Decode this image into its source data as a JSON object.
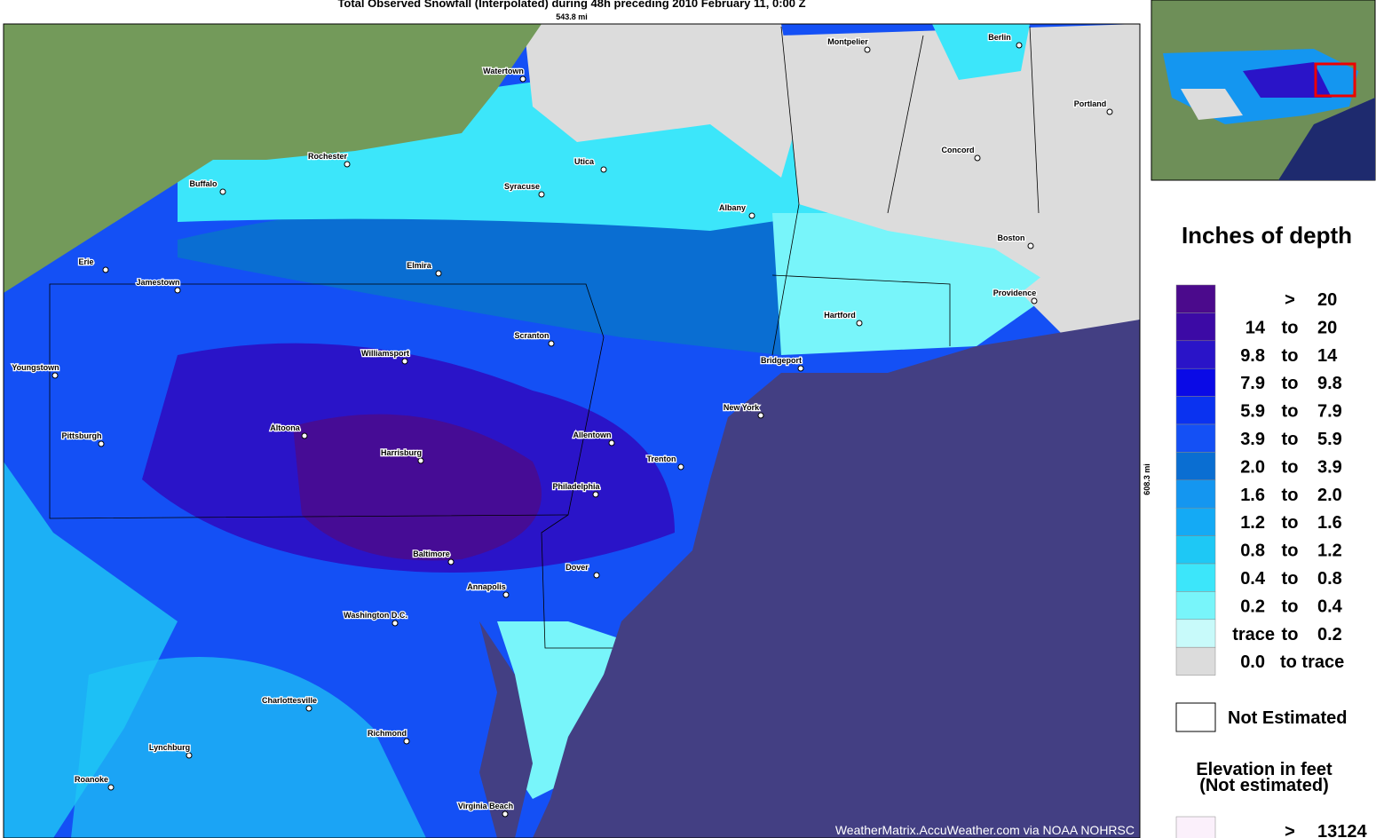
{
  "title": "Total Observed Snowfall (Interpolated) during 48h preceding 2010 February 11, 0:00 Z",
  "scale_top": "543.8 mi",
  "scale_right": "608.3 mi",
  "cities": [
    "Watertown",
    "Montpelier",
    "Berlin",
    "Portland",
    "Rochester",
    "Utica",
    "Syracuse",
    "Concord",
    "Buffalo",
    "Albany",
    "Boston",
    "Erie",
    "Elmira",
    "Jamestown",
    "Providence",
    "Hartford",
    "Scranton",
    "Williamsport",
    "Bridgeport",
    "Youngstown",
    "New York",
    "Altoona",
    "Pittsburgh",
    "Allentown",
    "Harrisburg",
    "Trenton",
    "Philadelphia",
    "Dover",
    "Baltimore",
    "Annapolis",
    "Washington D.C.",
    "Charlottesville",
    "Richmond",
    "Lynchburg",
    "Roanoke",
    "Virginia Beach"
  ],
  "legend": {
    "title": "Inches of depth",
    "rows": [
      {
        "sep": ">",
        "high": "20",
        "color": "#4b0a8c"
      },
      {
        "low": "14",
        "sep": "to",
        "high": "20",
        "color": "#3c0aa5"
      },
      {
        "low": "9.8",
        "sep": "to",
        "high": "14",
        "color": "#2a14c8"
      },
      {
        "low": "7.9",
        "sep": "to",
        "high": "9.8",
        "color": "#0a0ae6"
      },
      {
        "low": "5.9",
        "sep": "to",
        "high": "7.9",
        "color": "#0a32f0"
      },
      {
        "low": "3.9",
        "sep": "to",
        "high": "5.9",
        "color": "#1450f5"
      },
      {
        "low": "2.0",
        "sep": "to",
        "high": "3.9",
        "color": "#0a6ed2"
      },
      {
        "low": "1.6",
        "sep": "to",
        "high": "2.0",
        "color": "#1496f0"
      },
      {
        "low": "1.2",
        "sep": "to",
        "high": "1.6",
        "color": "#14aaf5"
      },
      {
        "low": "0.8",
        "sep": "to",
        "high": "1.2",
        "color": "#1ec8f5"
      },
      {
        "low": "0.4",
        "sep": "to",
        "high": "0.8",
        "color": "#3ce6fa"
      },
      {
        "low": "0.2",
        "sep": "to",
        "high": "0.4",
        "color": "#78f5fa"
      },
      {
        "low": "trace",
        "sep": "to",
        "high": "0.2",
        "color": "#c8fafa"
      },
      {
        "low": "0.0",
        "sep": "to trace",
        "color": "#dcdcdc"
      }
    ],
    "not_estimated": "Not Estimated",
    "elevation_title": [
      "Elevation in feet",
      "(Not estimated)"
    ],
    "elevation_rows": [
      {
        "sep": ">",
        "high": "13124",
        "color": "#fbf0fb"
      }
    ]
  },
  "credit": "WeatherMatrix.AccuWeather.com via NOAA NOHRSC"
}
